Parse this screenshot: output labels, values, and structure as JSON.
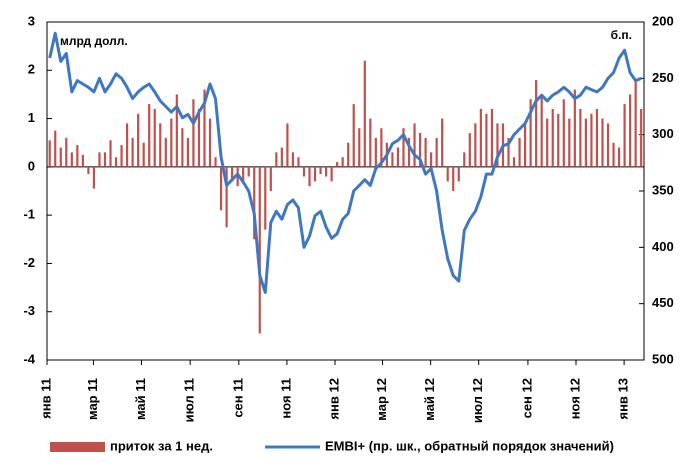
{
  "chart_data": {
    "type": "combo",
    "annotations": [
      "млрд долл.",
      "б.п."
    ],
    "x": [
      0,
      1,
      2,
      3,
      4,
      5,
      6,
      7,
      8,
      9,
      10,
      11,
      12,
      13,
      14,
      15,
      16,
      17,
      18,
      19,
      20,
      21,
      22,
      23,
      24,
      25,
      26,
      27,
      28,
      29,
      30,
      31,
      32,
      33,
      34,
      35,
      36,
      37,
      38,
      39,
      40,
      41,
      42,
      43,
      44,
      45,
      46,
      47,
      48,
      49,
      50,
      51,
      52,
      53,
      54,
      55,
      56,
      57,
      58,
      59,
      60,
      61,
      62,
      63,
      64,
      65,
      66,
      67,
      68,
      69,
      70,
      71,
      72,
      73,
      74,
      75,
      76,
      77,
      78,
      79,
      80,
      81,
      82,
      83,
      84,
      85,
      86,
      87,
      88,
      89,
      90,
      91,
      92,
      93,
      94,
      95,
      96,
      97,
      98,
      99,
      100,
      101,
      102,
      103,
      104,
      105,
      106,
      107
    ],
    "xlim": [
      0,
      108
    ],
    "xticks": [
      {
        "value": 0,
        "label": "янв 11"
      },
      {
        "value": 8.4,
        "label": "мар 11"
      },
      {
        "value": 17.1,
        "label": "май 11"
      },
      {
        "value": 25.9,
        "label": "июл 11"
      },
      {
        "value": 34.7,
        "label": "сен 11"
      },
      {
        "value": 43.4,
        "label": "ноя 11"
      },
      {
        "value": 52.1,
        "label": "янв 12"
      },
      {
        "value": 60.7,
        "label": "мар 12"
      },
      {
        "value": 69.4,
        "label": "май 12"
      },
      {
        "value": 78.1,
        "label": "июл 12"
      },
      {
        "value": 87,
        "label": "сен 12"
      },
      {
        "value": 95.7,
        "label": "ноя 12"
      },
      {
        "value": 104.4,
        "label": "янв 13"
      }
    ],
    "ylim": [
      -4,
      3
    ],
    "yticks": [
      -4,
      -3,
      -2,
      -1,
      0,
      1,
      2,
      3
    ],
    "y2lim": [
      500,
      200
    ],
    "y2ticks": [
      200,
      250,
      300,
      350,
      400,
      450,
      500
    ],
    "legend": "bottom",
    "series": [
      {
        "name": "приток за 1 нед.",
        "type": "bar",
        "color": "#c0504d",
        "values": [
          0.55,
          0.75,
          0.4,
          0.6,
          0.3,
          0.45,
          0.25,
          -0.15,
          -0.45,
          0.3,
          0.3,
          0.55,
          0.2,
          0.45,
          0.9,
          0.6,
          1.1,
          0.5,
          1.3,
          1.2,
          0.9,
          0.6,
          1.0,
          1.5,
          0.8,
          0.6,
          1.4,
          1.2,
          1.6,
          1.0,
          0.2,
          -0.9,
          -1.25,
          -0.3,
          -0.4,
          -0.3,
          -0.2,
          -1.5,
          -3.45,
          -1.3,
          -0.5,
          0.3,
          0.4,
          0.9,
          0.3,
          0.2,
          -0.2,
          -0.4,
          -0.3,
          -0.15,
          -0.2,
          -0.3,
          0.1,
          0.2,
          0.5,
          1.3,
          0.8,
          2.2,
          1.0,
          0.6,
          0.8,
          0.5,
          0.3,
          0.4,
          0.8,
          0.6,
          0.9,
          0.7,
          0.6,
          0.3,
          0.6,
          1.0,
          -0.3,
          -0.5,
          -0.3,
          0.3,
          0.7,
          0.9,
          1.2,
          1.1,
          1.2,
          0.9,
          0.9,
          0.6,
          0.2,
          0.6,
          0.9,
          1.4,
          1.8,
          1.5,
          1.0,
          1.2,
          1.1,
          1.4,
          1.0,
          1.6,
          1.2,
          1.0,
          1.1,
          1.2,
          1.0,
          0.9,
          0.5,
          0.4,
          1.3,
          1.5,
          1.8,
          1.2
        ]
      },
      {
        "name": "EMBI+ (пр. шк., обратный порядок значений)",
        "type": "line",
        "color": "#3f78c1",
        "axis": "y2",
        "values": [
          232,
          210,
          235,
          228,
          262,
          252,
          255,
          258,
          262,
          250,
          262,
          255,
          246,
          250,
          258,
          268,
          262,
          258,
          255,
          262,
          270,
          275,
          280,
          275,
          285,
          282,
          290,
          280,
          272,
          255,
          268,
          320,
          345,
          340,
          335,
          342,
          350,
          370,
          425,
          440,
          378,
          368,
          375,
          362,
          358,
          365,
          400,
          390,
          372,
          368,
          382,
          392,
          388,
          375,
          370,
          350,
          345,
          340,
          345,
          330,
          325,
          318,
          308,
          305,
          300,
          310,
          318,
          322,
          335,
          330,
          350,
          385,
          410,
          425,
          430,
          385,
          375,
          368,
          355,
          335,
          335,
          320,
          310,
          308,
          300,
          295,
          290,
          280,
          270,
          265,
          270,
          265,
          262,
          258,
          262,
          268,
          265,
          258,
          260,
          262,
          258,
          250,
          245,
          232,
          225,
          245,
          252,
          250
        ]
      }
    ]
  }
}
